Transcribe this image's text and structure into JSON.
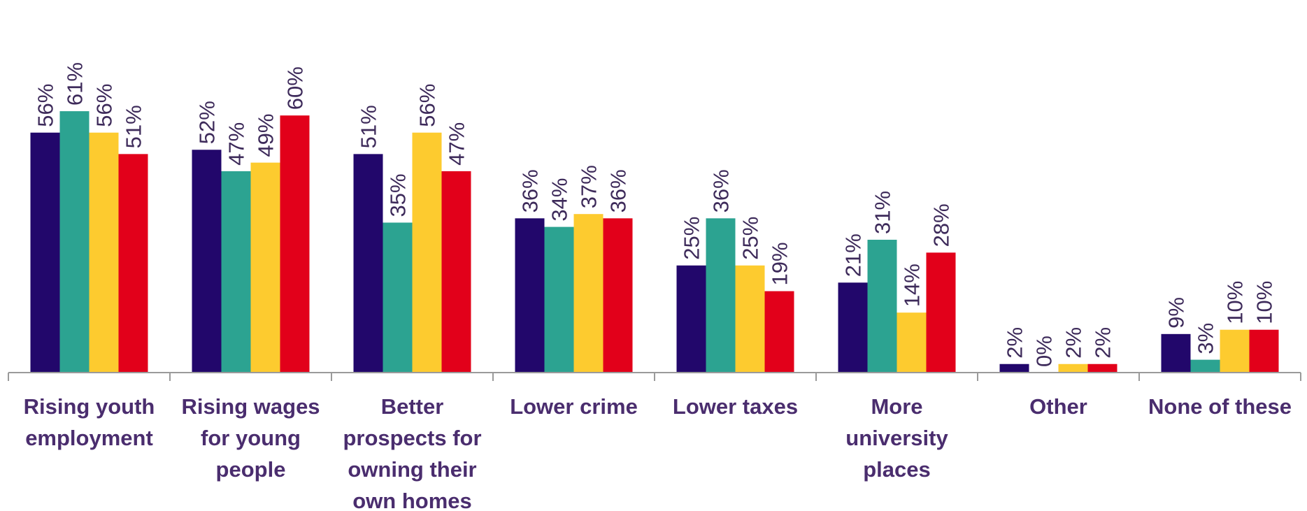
{
  "chart_data": {
    "type": "bar",
    "categories": [
      [
        "Rising youth",
        "employment"
      ],
      [
        "Rising wages",
        "for young",
        "people"
      ],
      [
        "Better",
        "prospects for",
        "owning their",
        "own homes"
      ],
      [
        "Lower crime"
      ],
      [
        "Lower taxes"
      ],
      [
        "More",
        "university",
        "places"
      ],
      [
        "Other"
      ],
      [
        "None of these"
      ]
    ],
    "series": [
      {
        "values": [
          56,
          52,
          51,
          36,
          25,
          21,
          2,
          9
        ],
        "color": "#22076b"
      },
      {
        "values": [
          61,
          47,
          35,
          34,
          36,
          31,
          0,
          3
        ],
        "color": "#2ca391"
      },
      {
        "values": [
          56,
          49,
          56,
          37,
          25,
          14,
          2,
          10
        ],
        "color": "#fdcb2f"
      },
      {
        "values": [
          51,
          60,
          47,
          36,
          19,
          28,
          2,
          10
        ],
        "color": "#e2001a"
      }
    ],
    "value_suffix": "%",
    "ylim": [
      0,
      72
    ],
    "grid": false,
    "legend": "none"
  }
}
